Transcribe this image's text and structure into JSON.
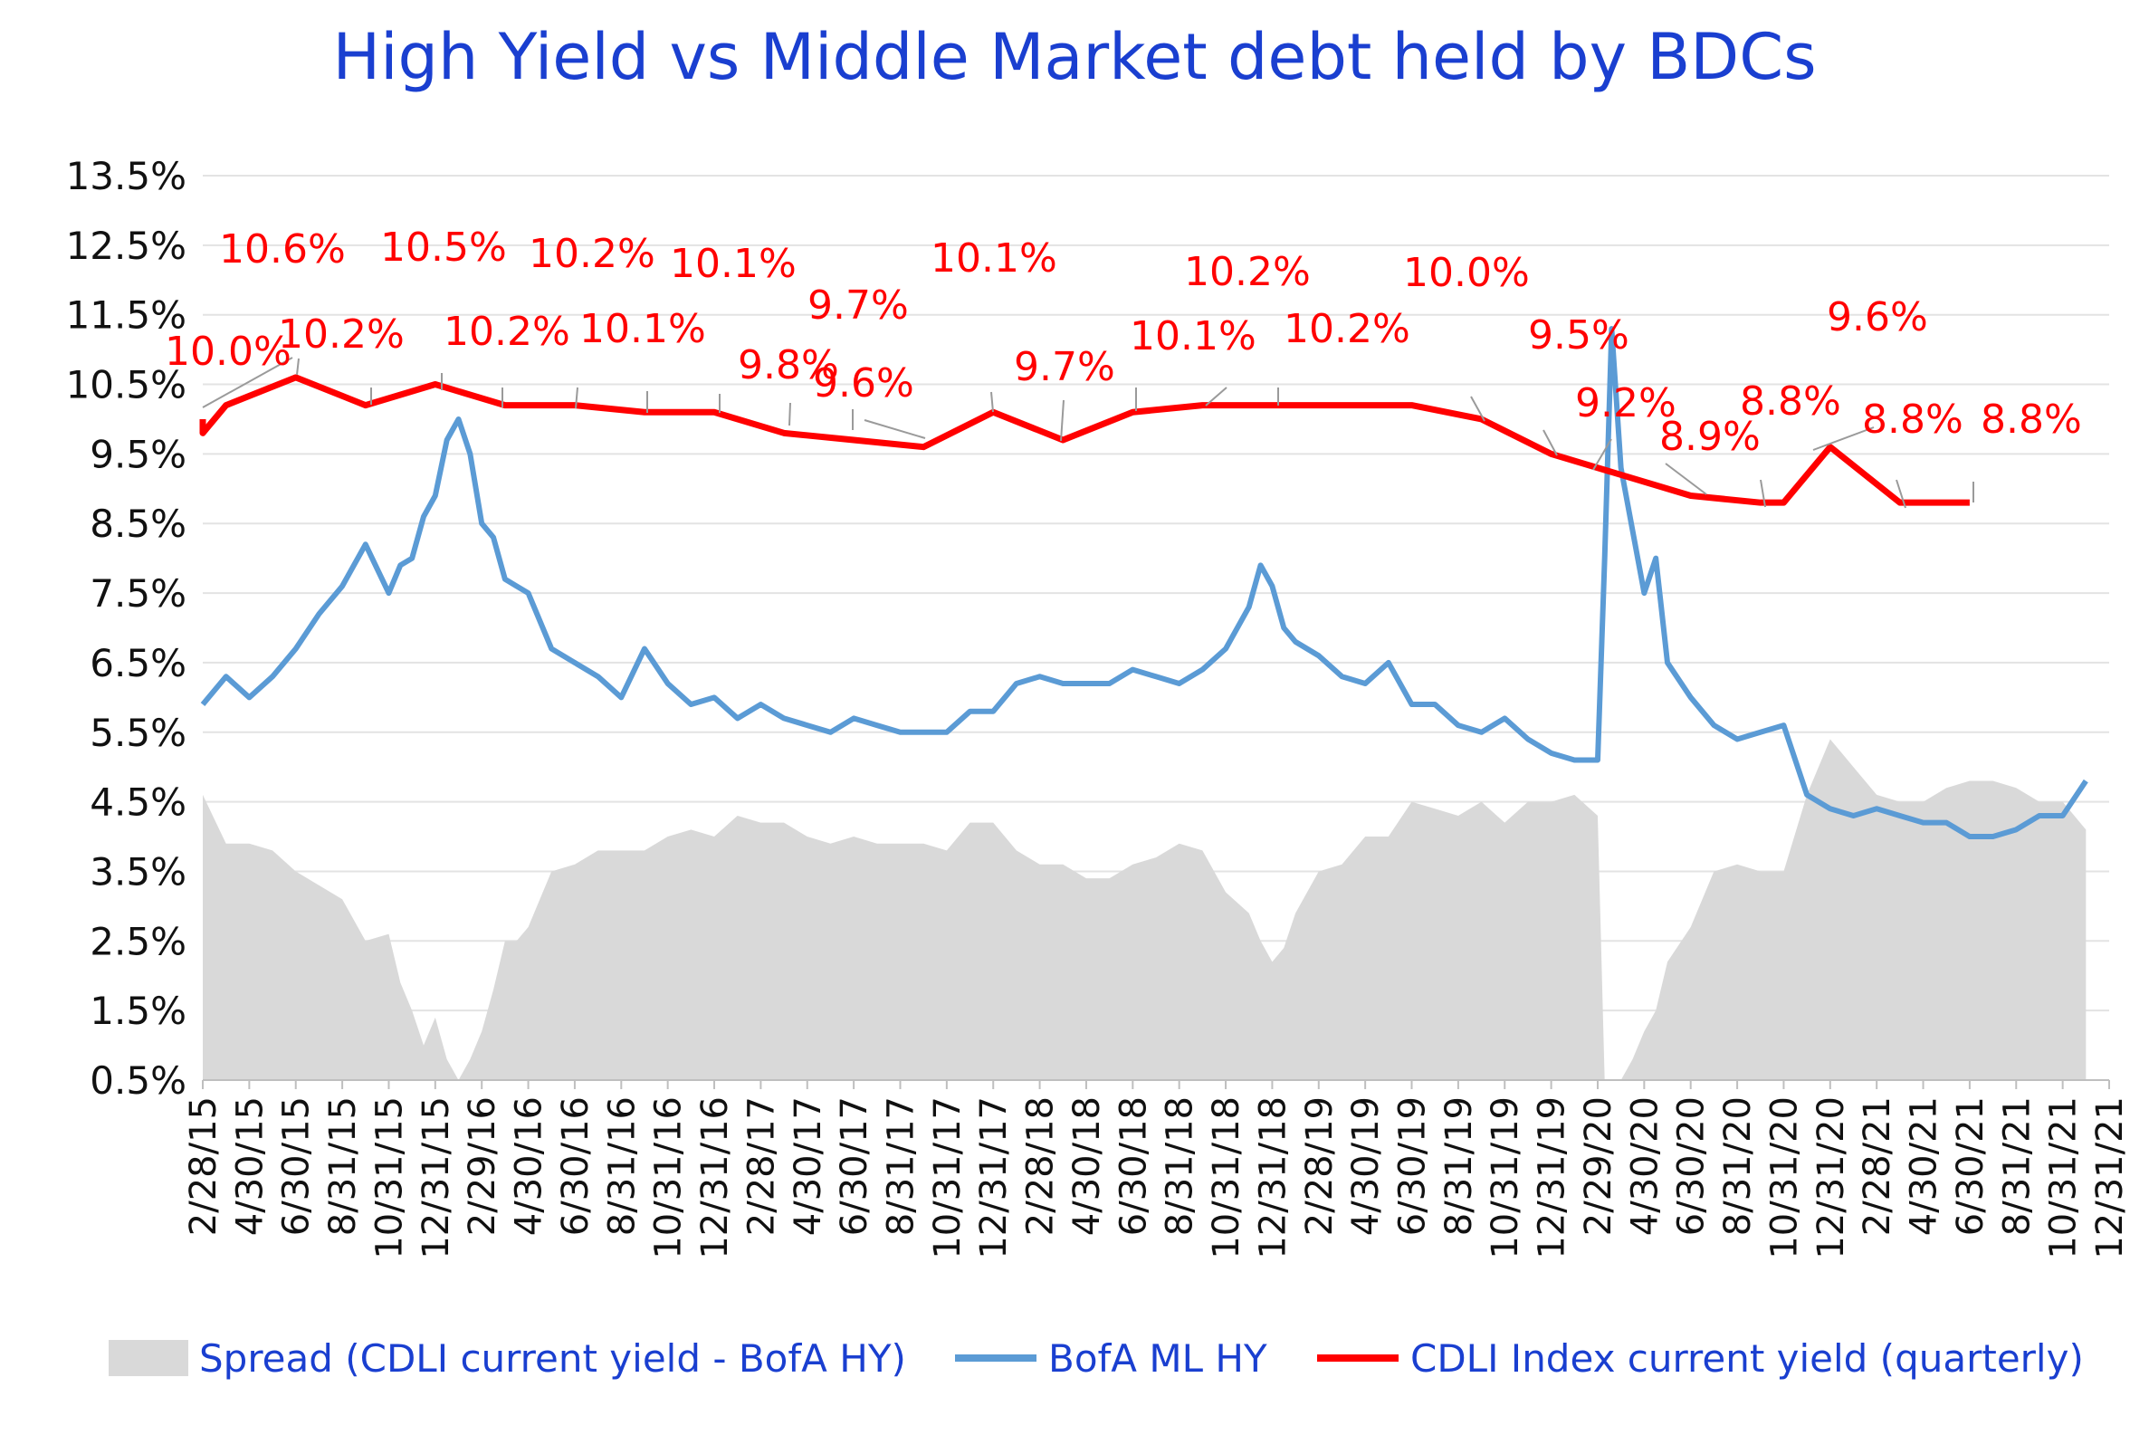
{
  "chart_data": {
    "type": "line",
    "title": "High Yield  vs  Middle Market debt held by BDCs",
    "xlabel": "",
    "ylabel": "",
    "ylim": [
      0.5,
      13.5
    ],
    "y_ticks": [
      "13.5%",
      "12.5%",
      "11.5%",
      "10.5%",
      "9.5%",
      "8.5%",
      "7.5%",
      "6.5%",
      "5.5%",
      "4.5%",
      "3.5%",
      "2.5%",
      "1.5%",
      "0.5%"
    ],
    "y_tick_values": [
      13.5,
      12.5,
      11.5,
      10.5,
      9.5,
      8.5,
      7.5,
      6.5,
      5.5,
      4.5,
      3.5,
      2.5,
      1.5,
      0.5
    ],
    "x_ticks": [
      "2/28/15",
      "4/30/15",
      "6/30/15",
      "8/31/15",
      "10/31/15",
      "12/31/15",
      "2/29/16",
      "4/30/16",
      "6/30/16",
      "8/31/16",
      "10/31/16",
      "12/31/16",
      "2/28/17",
      "4/30/17",
      "6/30/17",
      "8/31/17",
      "10/31/17",
      "12/31/17",
      "2/28/18",
      "4/30/18",
      "6/30/18",
      "8/31/18",
      "10/31/18",
      "12/31/18",
      "2/28/19",
      "4/30/19",
      "6/30/19",
      "8/31/19",
      "10/31/19",
      "12/31/19",
      "2/29/20",
      "4/30/20",
      "6/30/20",
      "8/31/20",
      "10/31/20",
      "12/31/20",
      "2/28/21",
      "4/30/21",
      "6/30/21",
      "8/31/21",
      "10/31/21",
      "12/31/21"
    ],
    "x_tick_months": [
      2,
      4,
      6,
      8,
      10,
      12,
      14,
      16,
      18,
      20,
      22,
      24,
      26,
      28,
      30,
      32,
      34,
      36,
      38,
      40,
      42,
      44,
      46,
      48,
      50,
      52,
      54,
      56,
      58,
      60,
      62,
      64,
      66,
      68,
      70,
      72,
      74,
      76,
      78,
      80,
      82,
      84
    ],
    "series": [
      {
        "name": "Spread (CDLI current yield - BofA HY)",
        "type": "area",
        "color": "#d9d9d9",
        "x": [
          2,
          3,
          4,
          5,
          6,
          7,
          8,
          9,
          10,
          10.5,
          11,
          11.5,
          12,
          12.5,
          13,
          13.5,
          14,
          14.5,
          15,
          15.5,
          16,
          17,
          18,
          19,
          20,
          21,
          22,
          23,
          24,
          25,
          26,
          27,
          28,
          29,
          30,
          31,
          32,
          33,
          34,
          35,
          36,
          37,
          38,
          39,
          40,
          41,
          42,
          43,
          44,
          45,
          46,
          47,
          47.5,
          48,
          48.5,
          49,
          50,
          51,
          52,
          53,
          54,
          55,
          56,
          57,
          58,
          59,
          60,
          61,
          62,
          62.3,
          62.6,
          63,
          63.5,
          64,
          64.5,
          65,
          66,
          67,
          68,
          69,
          70,
          71,
          72,
          73,
          74,
          75,
          76,
          77,
          78,
          79,
          80,
          81,
          82,
          83
        ],
        "values": [
          4.6,
          3.9,
          3.9,
          3.8,
          3.5,
          3.3,
          3.1,
          2.5,
          2.6,
          1.9,
          1.5,
          1.0,
          1.4,
          0.8,
          0.5,
          0.8,
          1.2,
          1.8,
          2.5,
          2.5,
          2.7,
          3.5,
          3.6,
          3.8,
          3.8,
          3.8,
          4.0,
          4.1,
          4.0,
          4.3,
          4.2,
          4.2,
          4.0,
          3.9,
          4.0,
          3.9,
          3.9,
          3.9,
          3.8,
          4.2,
          4.2,
          3.8,
          3.6,
          3.6,
          3.4,
          3.4,
          3.6,
          3.7,
          3.9,
          3.8,
          3.2,
          2.9,
          2.5,
          2.2,
          2.4,
          2.9,
          3.5,
          3.6,
          4.0,
          4.0,
          4.5,
          4.4,
          4.3,
          4.5,
          4.2,
          4.5,
          4.5,
          4.6,
          4.3,
          0.5,
          0.5,
          0.5,
          0.8,
          1.2,
          1.5,
          2.2,
          2.7,
          3.5,
          3.6,
          3.5,
          3.5,
          4.6,
          5.4,
          5.0,
          4.6,
          4.5,
          4.5,
          4.7,
          4.8,
          4.8,
          4.7,
          4.5,
          4.5,
          4.1
        ]
      },
      {
        "name": "BofA ML HY",
        "type": "line",
        "color": "#5b9bd5",
        "x": [
          2,
          3,
          4,
          5,
          6,
          7,
          8,
          9,
          10,
          10.5,
          11,
          11.5,
          12,
          12.5,
          13,
          13.5,
          14,
          14.5,
          15,
          15.5,
          16,
          17,
          18,
          19,
          20,
          21,
          22,
          23,
          24,
          25,
          26,
          27,
          28,
          29,
          30,
          31,
          32,
          33,
          34,
          35,
          36,
          37,
          38,
          39,
          40,
          41,
          42,
          43,
          44,
          45,
          46,
          47,
          47.5,
          48,
          48.5,
          49,
          50,
          51,
          52,
          53,
          54,
          55,
          56,
          57,
          58,
          59,
          60,
          61,
          62,
          62.3,
          62.6,
          63,
          63.5,
          64,
          64.5,
          65,
          66,
          67,
          68,
          69,
          70,
          71,
          72,
          73,
          74,
          75,
          76,
          77,
          78,
          79,
          80,
          81,
          82,
          83
        ],
        "values": [
          5.9,
          6.3,
          6.0,
          6.3,
          6.7,
          7.2,
          7.6,
          8.2,
          7.5,
          7.9,
          8.0,
          8.6,
          8.9,
          9.7,
          10.0,
          9.5,
          8.5,
          8.3,
          7.7,
          7.6,
          7.5,
          6.7,
          6.5,
          6.3,
          6.0,
          6.7,
          6.2,
          5.9,
          6.0,
          5.7,
          5.9,
          5.7,
          5.6,
          5.5,
          5.7,
          5.6,
          5.5,
          5.5,
          5.5,
          5.8,
          5.8,
          6.2,
          6.3,
          6.2,
          6.2,
          6.2,
          6.4,
          6.3,
          6.2,
          6.4,
          6.7,
          7.3,
          7.9,
          7.6,
          7.0,
          6.8,
          6.6,
          6.3,
          6.2,
          6.5,
          5.9,
          5.9,
          5.6,
          5.5,
          5.7,
          5.4,
          5.2,
          5.1,
          5.1,
          8.0,
          11.3,
          9.3,
          8.4,
          7.5,
          8.0,
          6.5,
          6.0,
          5.6,
          5.4,
          5.5,
          5.6,
          4.6,
          4.4,
          4.3,
          4.4,
          4.3,
          4.2,
          4.2,
          4.0,
          4.0,
          4.1,
          4.3,
          4.3,
          4.8
        ]
      },
      {
        "name": "CDLI Index current yield (quarterly)",
        "type": "line",
        "color": "#ff0000",
        "x": [
          0,
          1,
          3,
          6,
          9,
          12,
          15,
          18,
          21,
          24,
          27,
          30,
          33,
          36,
          39,
          42,
          45,
          48,
          51,
          54,
          57,
          60,
          63,
          66,
          69,
          70,
          72,
          75,
          78
        ],
        "values": [
          10.0,
          9.8,
          10.2,
          10.6,
          10.2,
          10.5,
          10.2,
          10.2,
          10.1,
          10.1,
          9.8,
          9.7,
          9.6,
          10.1,
          9.7,
          10.1,
          10.2,
          10.2,
          10.2,
          10.2,
          10.0,
          9.5,
          9.2,
          8.9,
          8.8,
          8.8,
          9.6,
          8.8,
          8.8
        ]
      }
    ],
    "data_labels": [
      "10.0%",
      "10.6%",
      "10.2%",
      "10.5%",
      "10.2%",
      "10.2%",
      "10.1%",
      "10.1%",
      "9.8%",
      "9.7%",
      "9.6%",
      "10.1%",
      "9.7%",
      "10.1%",
      "10.2%",
      "10.2%",
      "10.0%",
      "9.5%",
      "9.2%",
      "8.9%",
      "8.8%",
      "9.6%",
      "8.8%",
      "8.8%"
    ],
    "legend": {
      "position": "bottom",
      "items": [
        "Spread (CDLI current yield - BofA HY)",
        "BofA ML HY",
        "CDLI Index current yield (quarterly)"
      ]
    },
    "grid": true
  }
}
